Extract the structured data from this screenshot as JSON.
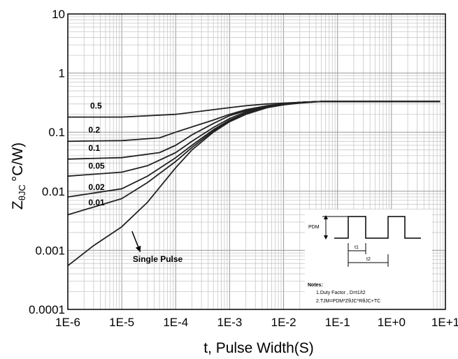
{
  "chart_data": {
    "type": "line",
    "x_scale": "log",
    "y_scale": "log",
    "xlim": [
      1e-06,
      10
    ],
    "ylim": [
      0.0001,
      10
    ],
    "grid": true,
    "xlabel": "t, Pulse Width(S)",
    "ylabel_main": "Z",
    "ylabel_sub": "θJC",
    "ylabel_unit": "°C/W)",
    "x_tick_labels": [
      "1E-6",
      "1E-5",
      "1E-4",
      "1E-3",
      "1E-2",
      "1E-1",
      "1E+0",
      "1E+1"
    ],
    "x_tick_values": [
      1e-06,
      1e-05,
      0.0001,
      0.001,
      0.01,
      0.1,
      1,
      10
    ],
    "y_tick_labels": [
      "10",
      "1",
      "0.1",
      "0.01",
      "0.001",
      "0.0001"
    ],
    "y_tick_values": [
      10,
      1,
      0.1,
      0.01,
      0.001,
      0.0001
    ],
    "series": [
      {
        "name": "0.5",
        "x": [
          1e-06,
          1e-05,
          0.0001,
          0.0005,
          0.001,
          0.002,
          0.005,
          0.01,
          0.02,
          0.05,
          0.1,
          1,
          8
        ],
        "y": [
          0.18,
          0.18,
          0.2,
          0.24,
          0.26,
          0.28,
          0.3,
          0.31,
          0.32,
          0.33,
          0.33,
          0.33,
          0.33
        ]
      },
      {
        "name": "0.2",
        "x": [
          1e-06,
          1e-05,
          5e-05,
          0.0001,
          0.0005,
          0.001,
          0.002,
          0.005,
          0.01,
          0.02,
          0.05,
          0.1,
          1,
          8
        ],
        "y": [
          0.07,
          0.072,
          0.08,
          0.1,
          0.16,
          0.2,
          0.24,
          0.28,
          0.3,
          0.32,
          0.33,
          0.33,
          0.33,
          0.33
        ]
      },
      {
        "name": "0.1",
        "x": [
          1e-06,
          1e-05,
          5e-05,
          0.0001,
          0.0002,
          0.0005,
          0.001,
          0.002,
          0.005,
          0.01,
          0.02,
          0.05,
          0.1,
          1,
          8
        ],
        "y": [
          0.035,
          0.037,
          0.045,
          0.06,
          0.09,
          0.14,
          0.19,
          0.23,
          0.28,
          0.3,
          0.32,
          0.33,
          0.33,
          0.33,
          0.33
        ]
      },
      {
        "name": "0.05",
        "x": [
          1e-06,
          1e-05,
          3e-05,
          0.0001,
          0.0002,
          0.0005,
          0.001,
          0.002,
          0.005,
          0.01,
          0.02,
          0.05,
          0.1,
          1,
          8
        ],
        "y": [
          0.018,
          0.021,
          0.027,
          0.045,
          0.07,
          0.12,
          0.17,
          0.22,
          0.27,
          0.3,
          0.32,
          0.33,
          0.33,
          0.33,
          0.33
        ]
      },
      {
        "name": "0.02",
        "x": [
          1e-06,
          1e-05,
          3e-05,
          0.0001,
          0.0002,
          0.0005,
          0.001,
          0.002,
          0.005,
          0.01,
          0.02,
          0.05,
          0.1,
          1,
          8
        ],
        "y": [
          0.008,
          0.011,
          0.018,
          0.037,
          0.06,
          0.11,
          0.16,
          0.21,
          0.27,
          0.3,
          0.32,
          0.33,
          0.33,
          0.33,
          0.33
        ]
      },
      {
        "name": "0.01",
        "x": [
          1e-06,
          1e-05,
          3e-05,
          0.0001,
          0.0002,
          0.0005,
          0.001,
          0.002,
          0.005,
          0.01,
          0.02,
          0.05,
          0.1,
          1,
          8
        ],
        "y": [
          0.004,
          0.0075,
          0.014,
          0.032,
          0.055,
          0.105,
          0.155,
          0.21,
          0.27,
          0.3,
          0.32,
          0.33,
          0.33,
          0.33,
          0.33
        ]
      },
      {
        "name": "Single Pulse",
        "x": [
          1e-06,
          3e-06,
          1e-05,
          3e-05,
          0.0001,
          0.0002,
          0.0005,
          0.001,
          0.002,
          0.005,
          0.01,
          0.02,
          0.05,
          0.1,
          1,
          8
        ],
        "y": [
          0.00055,
          0.0012,
          0.0025,
          0.0065,
          0.025,
          0.05,
          0.1,
          0.15,
          0.2,
          0.26,
          0.29,
          0.31,
          0.33,
          0.33,
          0.33,
          0.33
        ]
      }
    ],
    "curve_labels": [
      {
        "text": "0.5",
        "x": 2.6e-06,
        "y": 0.25
      },
      {
        "text": "0.2",
        "x": 2.4e-06,
        "y": 0.098
      },
      {
        "text": "0.1",
        "x": 2.4e-06,
        "y": 0.048
      },
      {
        "text": "0.05",
        "x": 2.4e-06,
        "y": 0.024
      },
      {
        "text": "0.02",
        "x": 2.4e-06,
        "y": 0.0105
      },
      {
        "text": "0.01",
        "x": 2.4e-06,
        "y": 0.0058
      },
      {
        "text": "Single Pulse",
        "x": 1.6e-05,
        "y": 0.00064
      }
    ],
    "arrow": {
      "from": {
        "x": 1.55e-05,
        "y": 0.0021
      },
      "to": {
        "x": 2.2e-05,
        "y": 0.00094
      }
    },
    "notes": {
      "pdm_label": "PDM",
      "t1_label": "t1",
      "t2_label": "t2",
      "title": "Notes:",
      "line1": "1.Duty Factor , D=t1/t2",
      "line2": "2.TJM=PDM*ZθJC*RθJC+TC"
    },
    "line_color": "#222222",
    "grid_major_color": "#999999",
    "grid_minor_color": "#c8c8c8"
  }
}
